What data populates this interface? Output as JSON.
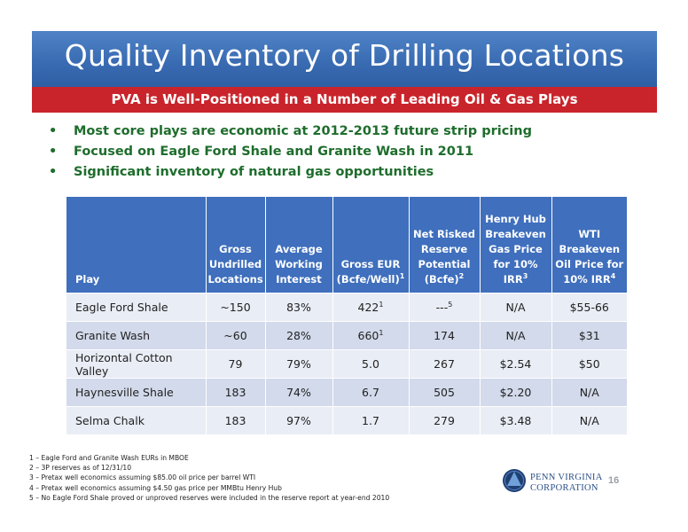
{
  "title": "Quality Inventory of Drilling Locations",
  "subtitle": "PVA is Well-Positioned in a Number of Leading Oil & Gas Plays",
  "bullets": [
    "Most core plays are economic at 2012-2013 future strip pricing",
    "Focused on Eagle Ford Shale and Granite Wash in 2011",
    "Significant inventory of natural gas opportunities"
  ],
  "table": {
    "headers": [
      {
        "text": "Play"
      },
      {
        "text": "Gross Undrilled Locations"
      },
      {
        "text": "Average Working Interest"
      },
      {
        "text": "Gross EUR (Bcfe/Well)",
        "sup": "1"
      },
      {
        "text": "Net Risked Reserve Potential (Bcfe)",
        "sup": "2"
      },
      {
        "text": "Henry Hub Breakeven Gas Price for 10% IRR",
        "sup": "3"
      },
      {
        "text": "WTI Breakeven Oil Price for 10% IRR",
        "sup": "4"
      }
    ],
    "rows": [
      {
        "play": "Eagle Ford Shale",
        "locations": "~150",
        "interest": "83%",
        "eur": "422",
        "eur_sup": "1",
        "reserve": "---",
        "reserve_sup": "5",
        "gas": "N/A",
        "oil": "$55-66"
      },
      {
        "play": "Granite Wash",
        "locations": "~60",
        "interest": "28%",
        "eur": "660",
        "eur_sup": "1",
        "reserve": "174",
        "reserve_sup": "",
        "gas": "N/A",
        "oil": "$31"
      },
      {
        "play": "Horizontal Cotton Valley",
        "locations": "79",
        "interest": "79%",
        "eur": "5.0",
        "eur_sup": "",
        "reserve": "267",
        "reserve_sup": "",
        "gas": "$2.54",
        "oil": "$50"
      },
      {
        "play": "Haynesville Shale",
        "locations": "183",
        "interest": "74%",
        "eur": "6.7",
        "eur_sup": "",
        "reserve": "505",
        "reserve_sup": "",
        "gas": "$2.20",
        "oil": "N/A"
      },
      {
        "play": "Selma Chalk",
        "locations": "183",
        "interest": "97%",
        "eur": "1.7",
        "eur_sup": "",
        "reserve": "279",
        "reserve_sup": "",
        "gas": "$3.48",
        "oil": "N/A"
      }
    ]
  },
  "footnotes": [
    "1 – Eagle Ford and Granite Wash EURs in MBOE",
    "2 – 3P reserves as of 12/31/10",
    "3 – Pretax well economics assuming $85.00 oil price per barrel WTI",
    "4 – Pretax well economics assuming $4.50 gas price per MMBtu Henry Hub",
    "5 – No Eagle Ford Shale proved or unproved reserves were included in the reserve report at year-end 2010"
  ],
  "logo": {
    "line1": "PENN VIRGINIA",
    "line2": "CORPORATION"
  },
  "page_number": "16",
  "colors": {
    "title_blue": "#3a6cb3",
    "subtitle_red": "#c9242b",
    "bullet_green": "#1e6d2c",
    "header_blue": "#3f6fbd"
  }
}
